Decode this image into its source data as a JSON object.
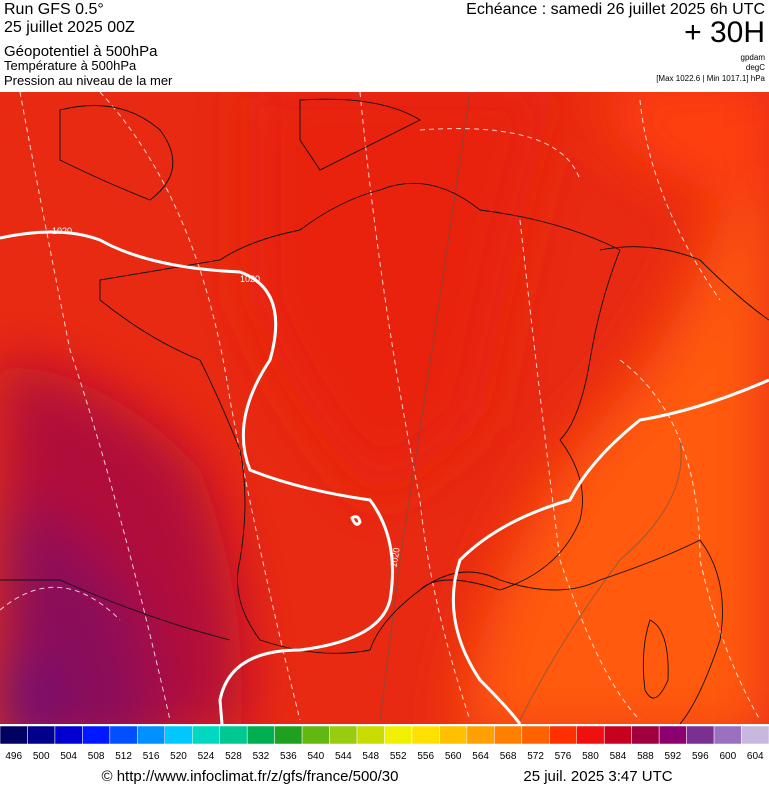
{
  "header": {
    "title_lines": [
      "Run GFS 0.5°",
      "25 juillet 2025 00Z"
    ],
    "field_lines": [
      "Géopotentiel à 500hPa",
      "Température à 500hPa",
      "Pression au niveau de la mer"
    ],
    "valid": "Echéance : samedi 26 juillet 2025 6h UTC",
    "lead": "+ 30H",
    "units": [
      "gpdam",
      "degC",
      "[Max 1022.6 | Min 1017.1] hPa"
    ]
  },
  "map": {
    "isobar_labels": [
      "1020",
      "1020",
      "1020"
    ]
  },
  "colorbar": {
    "labels": [
      496,
      500,
      504,
      508,
      512,
      516,
      520,
      524,
      528,
      532,
      536,
      540,
      544,
      548,
      552,
      556,
      560,
      564,
      568,
      572,
      576,
      580,
      584,
      588,
      592,
      596,
      600,
      604
    ],
    "colors": [
      "#000060",
      "#00008c",
      "#0000d0",
      "#0018ff",
      "#0050ff",
      "#0090ff",
      "#00c8ff",
      "#00d8c0",
      "#00c890",
      "#00b050",
      "#20a020",
      "#60b810",
      "#98cc10",
      "#c8dc00",
      "#f0f000",
      "#ffe000",
      "#ffc000",
      "#ffa000",
      "#ff8000",
      "#ff6000",
      "#ff3000",
      "#f01010",
      "#c80020",
      "#a00040",
      "#8c0070",
      "#7a3090",
      "#9a70c0",
      "#c8b8e0"
    ]
  },
  "footer": {
    "source": "© http://www.infoclimat.fr/z/gfs/france/500/30",
    "generated": "25 juil. 2025  3:47 UTC"
  }
}
